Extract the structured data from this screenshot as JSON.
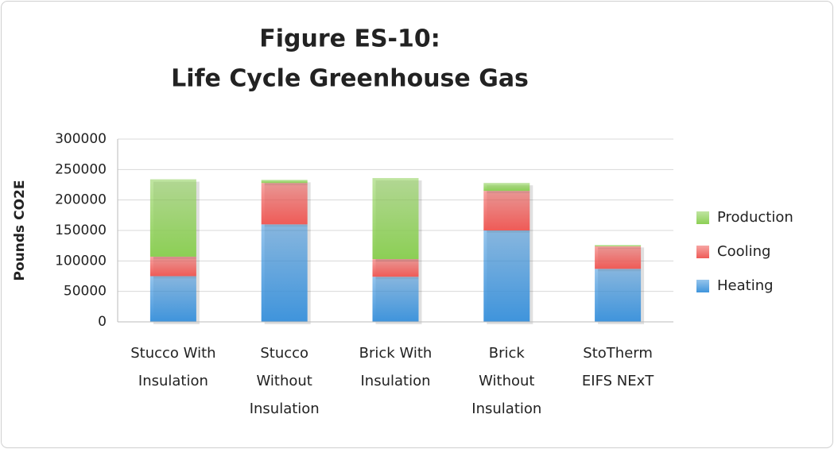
{
  "chart_data": {
    "type": "stacked_bar",
    "title": [
      "Figure ES-10:",
      "Life Cycle Greenhouse Gas"
    ],
    "y_label": "Pounds CO2E",
    "categories": [
      "Stucco With Insulation",
      "Stucco Without Insulation",
      "Brick With Insulation",
      "Brick Without Insulation",
      "StoTherm EIFS NExT"
    ],
    "series": [
      {
        "name": "Heating",
        "color": "#3f94dc",
        "values": [
          75000,
          160000,
          74000,
          150000,
          87000
        ]
      },
      {
        "name": "Cooling",
        "color": "#ef5b57",
        "values": [
          32000,
          68000,
          29000,
          65000,
          37000
        ]
      },
      {
        "name": "Production",
        "color": "#8ccf55",
        "values": [
          127000,
          5000,
          133000,
          13000,
          2000
        ]
      }
    ],
    "ylim": [
      0,
      300000
    ],
    "yticks": [
      0,
      50000,
      100000,
      150000,
      200000,
      250000,
      300000
    ],
    "grid": true,
    "legend": "right"
  }
}
